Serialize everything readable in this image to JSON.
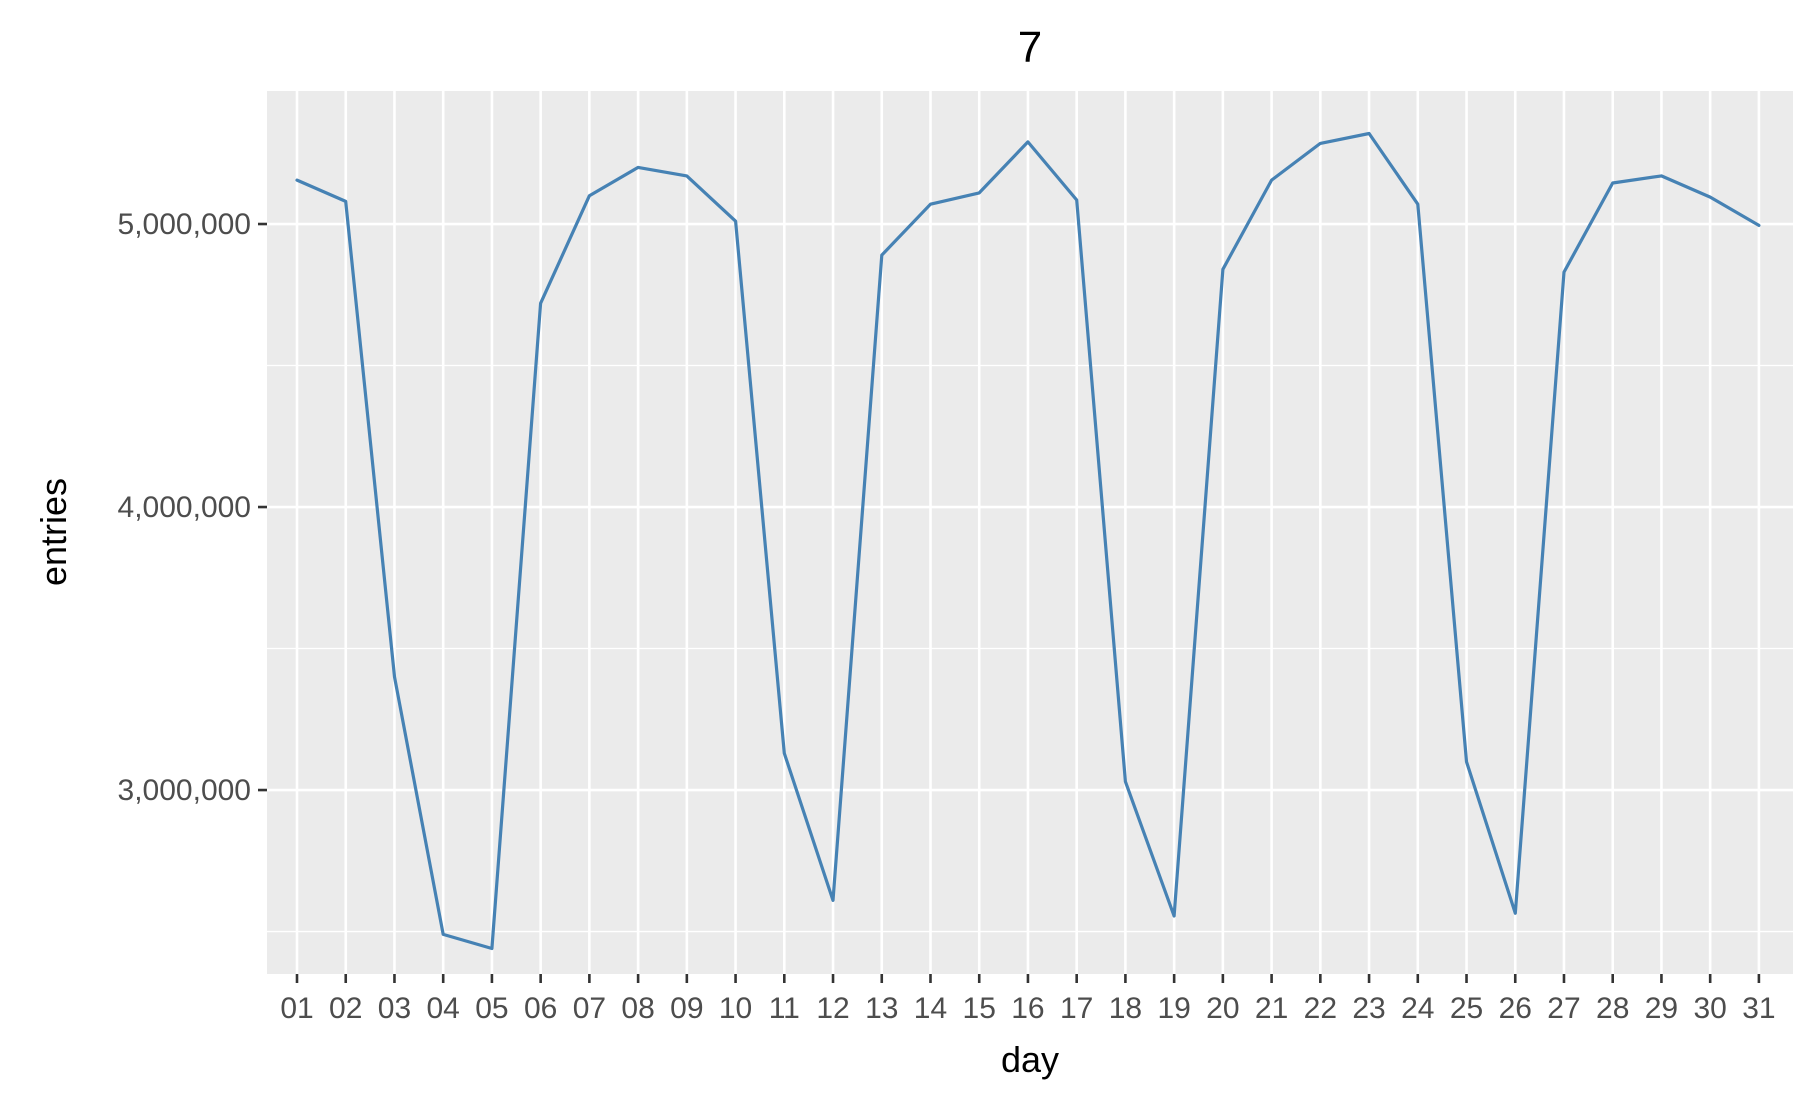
{
  "chart_data": {
    "type": "line",
    "title": "7",
    "xlabel": "day",
    "ylabel": "entries",
    "categories": [
      "01",
      "02",
      "03",
      "04",
      "05",
      "06",
      "07",
      "08",
      "09",
      "10",
      "11",
      "12",
      "13",
      "14",
      "15",
      "16",
      "17",
      "18",
      "19",
      "20",
      "21",
      "22",
      "23",
      "24",
      "25",
      "26",
      "27",
      "28",
      "29",
      "30",
      "31"
    ],
    "series": [
      {
        "color": "#4682b4",
        "values": [
          5155000,
          5080000,
          3400000,
          2490000,
          2440000,
          4720000,
          5100000,
          5200000,
          5170000,
          5010000,
          3130000,
          2610000,
          4890000,
          5070000,
          5110000,
          5290000,
          5085000,
          3030000,
          2555000,
          4840000,
          5155000,
          5285000,
          5320000,
          5070000,
          3100000,
          2565000,
          4830000,
          5145000,
          5170000,
          5095000,
          4995000
        ]
      }
    ],
    "ylim": [
      2350000,
      5470000
    ],
    "yticks": [
      3000000,
      4000000,
      5000000
    ],
    "ytick_labels": [
      "3,000,000",
      "4,000,000",
      "5,000,000"
    ],
    "yminor": [
      2500000,
      3500000,
      4500000
    ],
    "grid": true,
    "legend": "none",
    "panel_color": "#ebebeb"
  }
}
